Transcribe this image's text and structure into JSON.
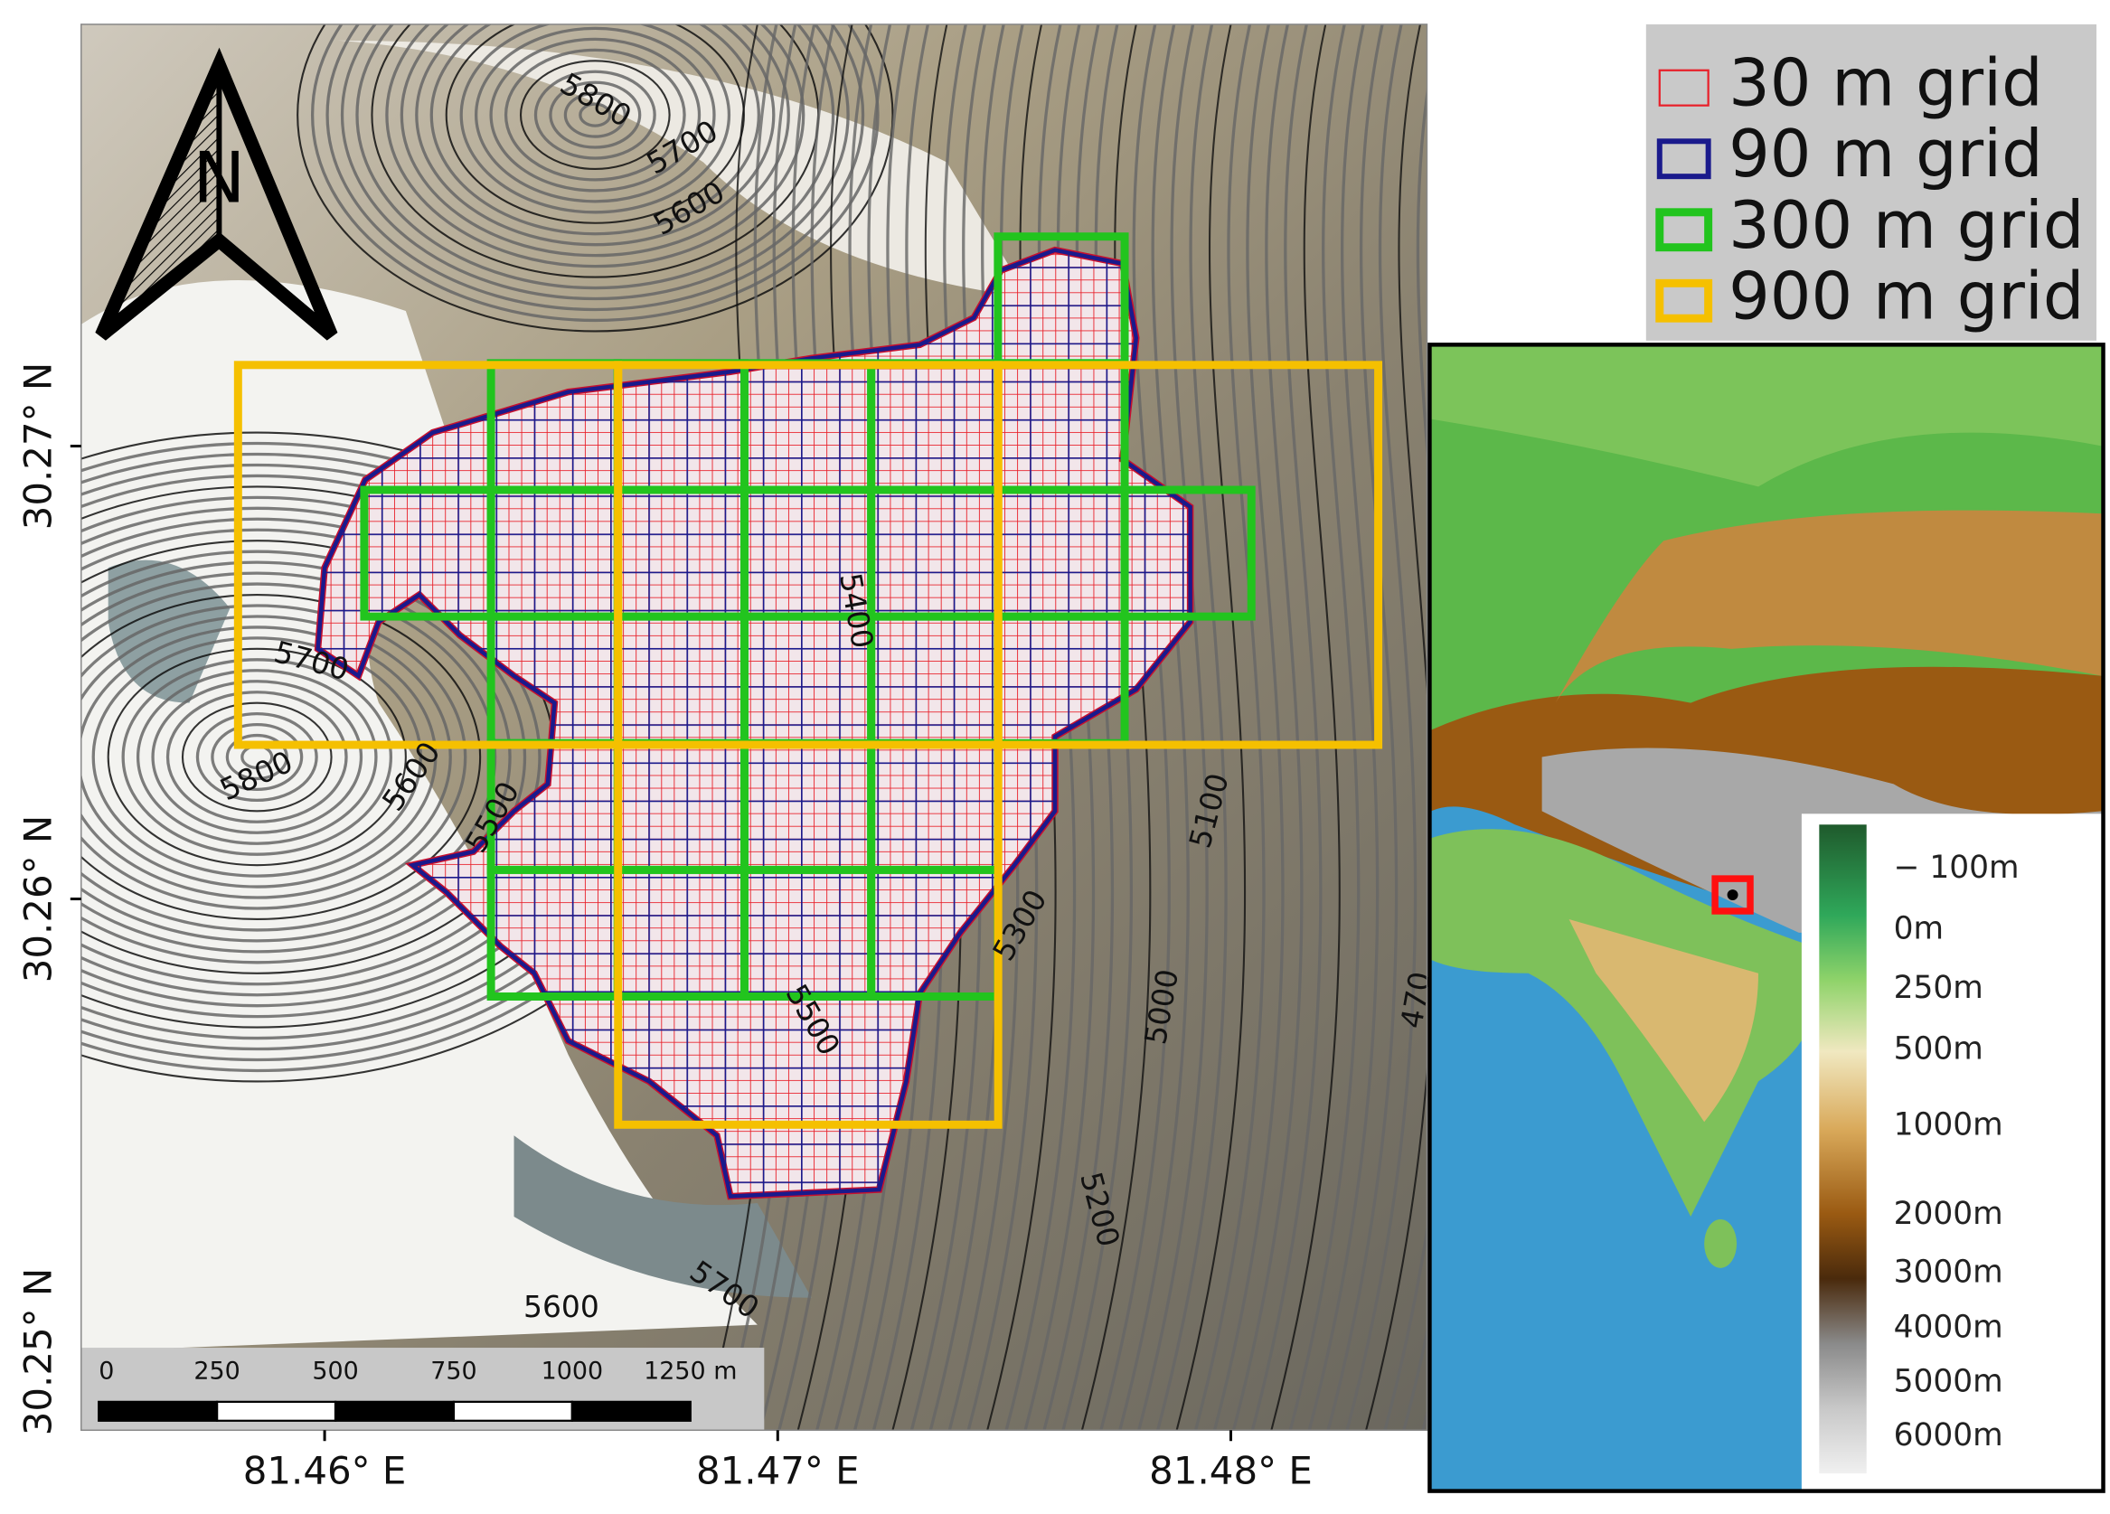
{
  "north_label": "N",
  "legend": [
    {
      "label": "30 m grid",
      "color": "#e8202a"
    },
    {
      "label": "90 m grid",
      "color": "#1a1a8c"
    },
    {
      "label": "300 m grid",
      "color": "#22c41e"
    },
    {
      "label": "900 m grid",
      "color": "#f5c000"
    }
  ],
  "y_axis_labels": [
    "30.27° N",
    "30.26° N",
    "30.25° N"
  ],
  "x_axis_labels": [
    "81.46° E",
    "81.47° E",
    "81.48° E"
  ],
  "scale_bar": {
    "labels": [
      "0",
      "250",
      "500",
      "750",
      "1000",
      "1250 m"
    ]
  },
  "contour_labels": [
    "5800",
    "5700",
    "5600",
    "5700",
    "5800",
    "5600",
    "5500",
    "5400",
    "5100",
    "5300",
    "5000",
    "5500",
    "5200",
    "470",
    "5700",
    "5600"
  ],
  "elevation_legend": [
    "− 100m",
    "0m",
    "250m",
    "500m",
    "1000m",
    "2000m",
    "3000m",
    "4000m",
    "5000m",
    "6000m"
  ]
}
